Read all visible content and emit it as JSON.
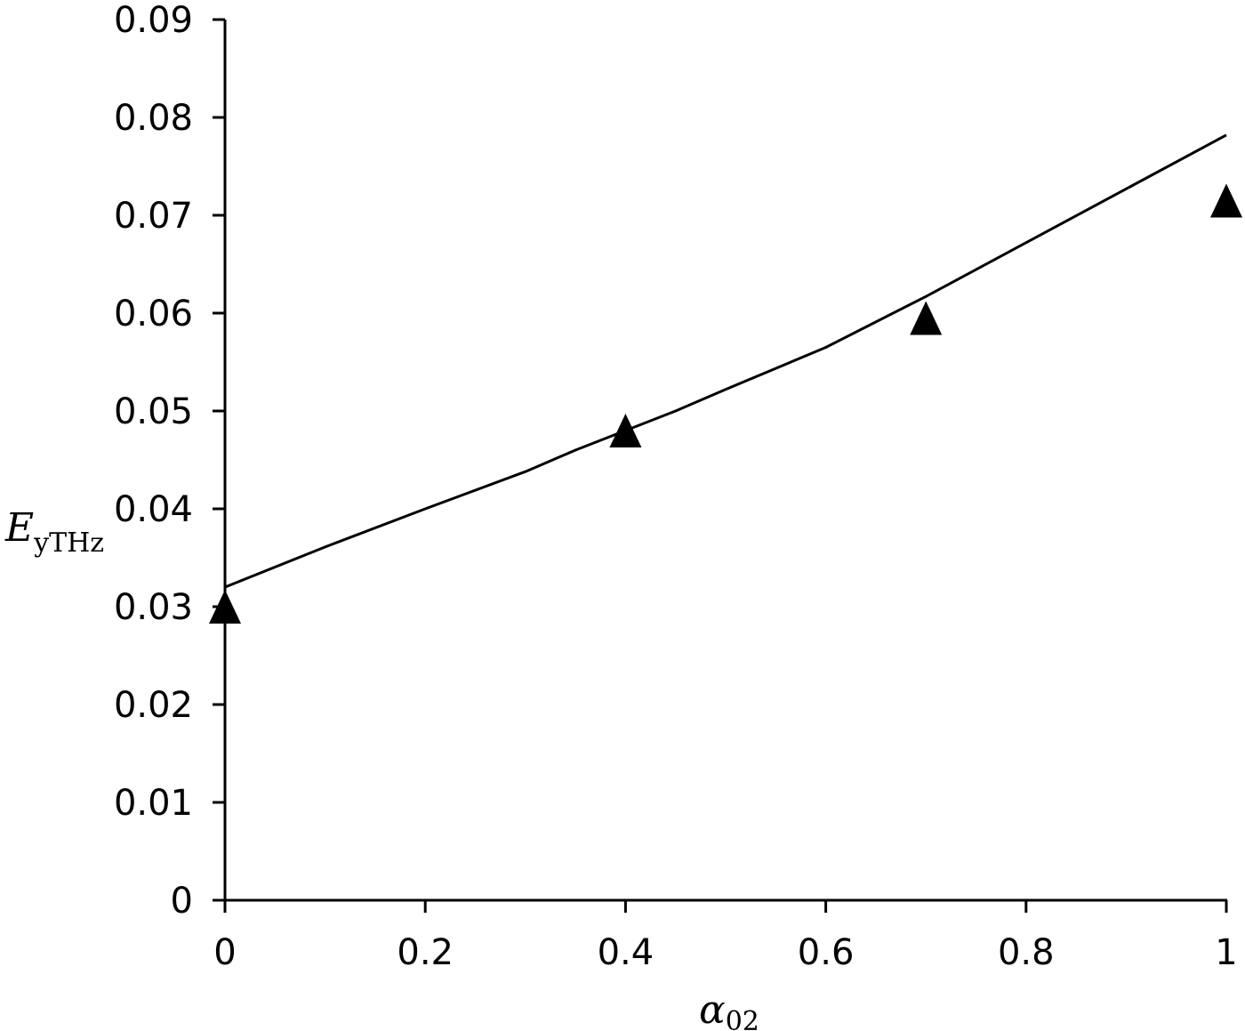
{
  "chart_data": {
    "type": "line",
    "title": "",
    "xlabel": {
      "main": "α",
      "sub": "02"
    },
    "ylabel": {
      "main": "E",
      "sub": "yTHz"
    },
    "xlim": [
      0,
      1
    ],
    "ylim": [
      0,
      0.09
    ],
    "x_ticks": [
      "0",
      "0.2",
      "0.4",
      "0.6",
      "0.8",
      "1"
    ],
    "y_ticks": [
      "0",
      "0.01",
      "0.02",
      "0.03",
      "0.04",
      "0.05",
      "0.06",
      "0.07",
      "0.08",
      "0.09"
    ],
    "grid": false,
    "legend": "none",
    "series": [
      {
        "style": "line",
        "color": "#000000",
        "x": [
          0,
          0.1,
          0.2,
          0.3,
          0.35,
          0.4,
          0.45,
          0.5,
          0.6,
          0.7,
          0.8,
          0.9,
          1.0
        ],
        "y": [
          0.032,
          0.0361,
          0.04,
          0.0438,
          0.046,
          0.048,
          0.05,
          0.0522,
          0.0565,
          0.0617,
          0.0672,
          0.0727,
          0.0782
        ]
      },
      {
        "style": "marker-triangle",
        "color": "#000000",
        "x": [
          0,
          0.4,
          0.7,
          1.0
        ],
        "y": [
          0.03,
          0.048,
          0.0595,
          0.0715
        ]
      }
    ]
  }
}
